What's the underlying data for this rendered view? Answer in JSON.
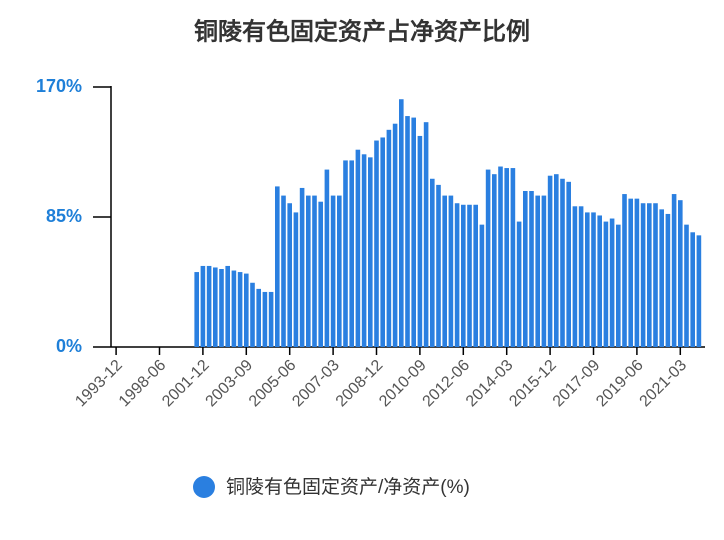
{
  "chart_data": {
    "type": "bar",
    "title": "铜陵有色固定资产占净资产比例",
    "categories": [
      "1993-12",
      null,
      null,
      null,
      null,
      null,
      null,
      "1998-06",
      null,
      null,
      null,
      null,
      null,
      null,
      "2001-12",
      null,
      null,
      null,
      null,
      null,
      null,
      "2003-09",
      null,
      null,
      null,
      null,
      null,
      null,
      "2005-06",
      null,
      null,
      null,
      null,
      null,
      null,
      "2007-03",
      null,
      null,
      null,
      null,
      null,
      null,
      "2008-12",
      null,
      null,
      null,
      null,
      null,
      null,
      "2010-09",
      null,
      null,
      null,
      null,
      null,
      null,
      "2012-06",
      null,
      null,
      null,
      null,
      null,
      null,
      "2014-03",
      null,
      null,
      null,
      null,
      null,
      null,
      "2015-12",
      null,
      null,
      null,
      null,
      null,
      null,
      "2017-09",
      null,
      null,
      null,
      null,
      null,
      null,
      "2019-06",
      null,
      null,
      null,
      null,
      null,
      null,
      "2021-03",
      null,
      null,
      null
    ],
    "series": [
      {
        "name": "铜陵有色固定资产/净资产(%)",
        "color": "#2a7fe0",
        "values": [
          null,
          null,
          null,
          null,
          null,
          null,
          null,
          null,
          null,
          null,
          null,
          null,
          null,
          49,
          53,
          53,
          52,
          51,
          53,
          50,
          49,
          48,
          42,
          38,
          36,
          36,
          105,
          99,
          94,
          88,
          104,
          99,
          99,
          95,
          116,
          99,
          99,
          122,
          122,
          129,
          126,
          124,
          135,
          137,
          142,
          146,
          162,
          151,
          150,
          138,
          147,
          110,
          106,
          99,
          99,
          94,
          93,
          93,
          93,
          80,
          116,
          113,
          118,
          117,
          117,
          82,
          102,
          102,
          99,
          99,
          112,
          113,
          110,
          108,
          92,
          92,
          88,
          88,
          86,
          82,
          84,
          80,
          100,
          97,
          97,
          94,
          94,
          94,
          90,
          87,
          100,
          96,
          80,
          75,
          73
        ]
      }
    ],
    "ylim": [
      0,
      170
    ],
    "yticks": [
      {
        "value": 0,
        "label": "0%"
      },
      {
        "value": 85,
        "label": "85%"
      },
      {
        "value": 170,
        "label": "170%"
      }
    ],
    "legend": "bottom"
  }
}
